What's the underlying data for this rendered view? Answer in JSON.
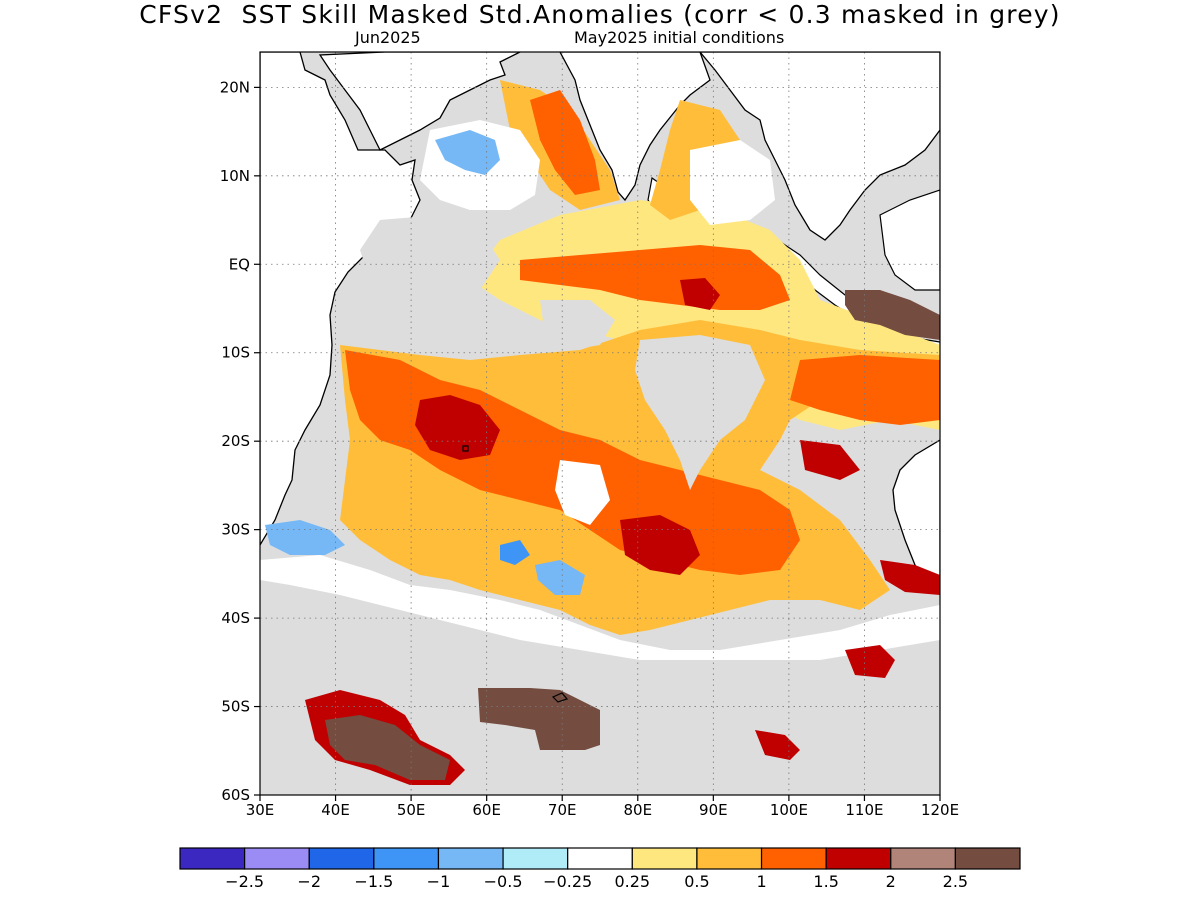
{
  "title": "CFSv2  SST Skill Masked Std.Anomalies (corr < 0.3 masked in grey)",
  "subtitle_left": "Jun2025",
  "subtitle_right": "May2025 initial conditions",
  "map": {
    "lat_labels": [
      "20N",
      "10N",
      "EQ",
      "10S",
      "20S",
      "30S",
      "40S",
      "50S",
      "60S"
    ],
    "lon_labels": [
      "30E",
      "40E",
      "50E",
      "60E",
      "70E",
      "80E",
      "90E",
      "100E",
      "110E",
      "120E"
    ],
    "mask_color": "#dddddd",
    "land_color": "#ffffff"
  },
  "colorbar": {
    "colors": [
      "#3a28c0",
      "#9b8cf5",
      "#1f67e8",
      "#3f95f5",
      "#75b8f5",
      "#b0ecf8",
      "#ffffff",
      "#ffe780",
      "#ffbd3a",
      "#ff6000",
      "#c00000",
      "#b08479",
      "#744c40"
    ],
    "labels": [
      "-2.5",
      "-2",
      "-1.5",
      "-1",
      "-0.5",
      "-0.25",
      "0.25",
      "0.5",
      "1",
      "1.5",
      "2",
      "2.5"
    ]
  }
}
